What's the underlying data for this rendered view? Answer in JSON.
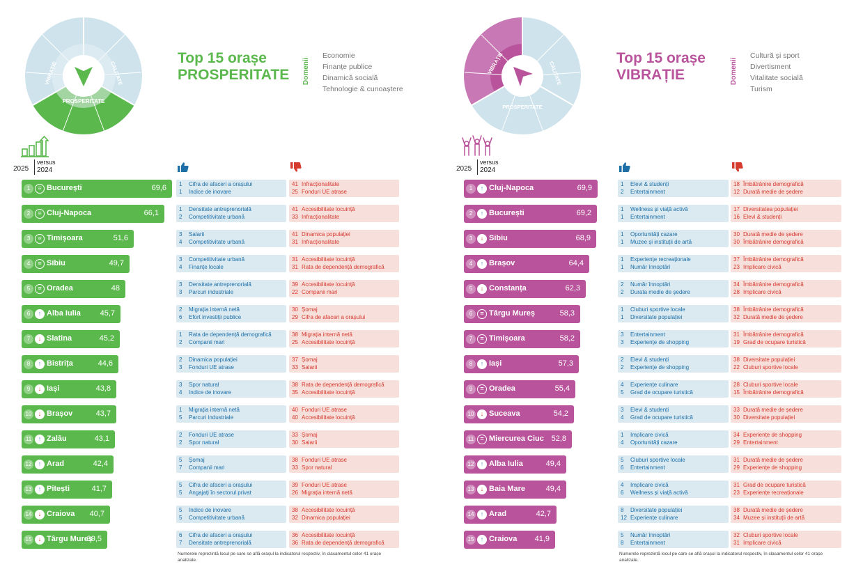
{
  "left": {
    "title_line1": "Top 15 orașe",
    "title_line2": "PROSPERITATE",
    "domenii_label": "Domenii",
    "domains": [
      "Economie",
      "Finanțe publice",
      "Dinamică socială",
      "Tehnologie & cunoaștere"
    ],
    "year_current": "2025",
    "versus": "versus",
    "year_prev": "2024",
    "wheel_labels": {
      "main_active": "PROSPERITATE",
      "other1": "VIBRAȚIE",
      "other2": "CALITATE"
    },
    "footnote": "Numerele reprezintă locul pe care se află orașul la indicatorul respectiv, în clasamentul celor 41 orașe analizate.",
    "rows": [
      {
        "rank": "1",
        "trend": "eq",
        "city": "București",
        "score": "69,6",
        "score_value": 69.6,
        "pos": [
          {
            "n": "1",
            "t": "Cifra de afaceri a orașului"
          },
          {
            "n": "1",
            "t": "Indice de inovare"
          }
        ],
        "neg": [
          {
            "n": "41",
            "t": "Infracționalitate"
          },
          {
            "n": "25",
            "t": "Fonduri UE atrase"
          }
        ]
      },
      {
        "rank": "2",
        "trend": "eq",
        "city": "Cluj-Napoca",
        "score": "66,1",
        "score_value": 66.1,
        "pos": [
          {
            "n": "1",
            "t": "Densitate antreprenorială"
          },
          {
            "n": "2",
            "t": "Competitivitate urbană"
          }
        ],
        "neg": [
          {
            "n": "41",
            "t": "Accesibilitate locuință"
          },
          {
            "n": "33",
            "t": "Infracționalitate"
          }
        ]
      },
      {
        "rank": "3",
        "trend": "eq",
        "city": "Timișoara",
        "score": "51,6",
        "score_value": 51.6,
        "pos": [
          {
            "n": "3",
            "t": "Salarii"
          },
          {
            "n": "4",
            "t": "Competitivitate urbană"
          }
        ],
        "neg": [
          {
            "n": "41",
            "t": "Dinamica populației"
          },
          {
            "n": "31",
            "t": "Infracționalitate"
          }
        ]
      },
      {
        "rank": "4",
        "trend": "eq",
        "city": "Sibiu",
        "score": "49,7",
        "score_value": 49.7,
        "pos": [
          {
            "n": "3",
            "t": "Competitivitate urbană"
          },
          {
            "n": "4",
            "t": "Finanțe locale"
          }
        ],
        "neg": [
          {
            "n": "31",
            "t": "Accesibilitate locuință"
          },
          {
            "n": "31",
            "t": "Rata de dependență demografică"
          }
        ]
      },
      {
        "rank": "5",
        "trend": "eq",
        "city": "Oradea",
        "score": "48",
        "score_value": 48,
        "pos": [
          {
            "n": "3",
            "t": "Densitate antreprenorială"
          },
          {
            "n": "3",
            "t": "Parcuri industriale"
          }
        ],
        "neg": [
          {
            "n": "39",
            "t": "Accesibilitate locuință"
          },
          {
            "n": "22",
            "t": "Companii mari"
          }
        ]
      },
      {
        "rank": "6",
        "trend": "up",
        "city": "Alba Iulia",
        "score": "45,7",
        "score_value": 45.7,
        "pos": [
          {
            "n": "2",
            "t": "Migrația internă netă"
          },
          {
            "n": "6",
            "t": "Efort investiții publice"
          }
        ],
        "neg": [
          {
            "n": "30",
            "t": "Șomaj"
          },
          {
            "n": "29",
            "t": "Cifra de afaceri a orașului"
          }
        ]
      },
      {
        "rank": "7",
        "trend": "down",
        "city": "Slatina",
        "score": "45,2",
        "score_value": 45.2,
        "pos": [
          {
            "n": "1",
            "t": "Rata de dependență demografică"
          },
          {
            "n": "2",
            "t": "Companii mari"
          }
        ],
        "neg": [
          {
            "n": "38",
            "t": "Migrația internă netă"
          },
          {
            "n": "25",
            "t": "Accesibilitate locuință"
          }
        ]
      },
      {
        "rank": "8",
        "trend": "up",
        "city": "Bistrița",
        "score": "44,6",
        "score_value": 44.6,
        "pos": [
          {
            "n": "2",
            "t": "Dinamica populației"
          },
          {
            "n": "3",
            "t": "Fonduri UE atrase"
          }
        ],
        "neg": [
          {
            "n": "37",
            "t": "Șomaj"
          },
          {
            "n": "33",
            "t": "Salarii"
          }
        ]
      },
      {
        "rank": "9",
        "trend": "down",
        "city": "Iași",
        "score": "43,8",
        "score_value": 43.8,
        "pos": [
          {
            "n": "3",
            "t": "Spor natural"
          },
          {
            "n": "4",
            "t": "Indice de inovare"
          }
        ],
        "neg": [
          {
            "n": "38",
            "t": "Rata de dependență demografică"
          },
          {
            "n": "35",
            "t": "Accesibilitate locuință"
          }
        ]
      },
      {
        "rank": "10",
        "trend": "down",
        "city": "Brașov",
        "score": "43,7",
        "score_value": 43.7,
        "pos": [
          {
            "n": "1",
            "t": "Migrația internă netă"
          },
          {
            "n": "5",
            "t": "Parcuri industriale"
          }
        ],
        "neg": [
          {
            "n": "40",
            "t": "Fonduri UE atrase"
          },
          {
            "n": "40",
            "t": "Accesibilitate locuință"
          }
        ]
      },
      {
        "rank": "11",
        "trend": "up",
        "city": "Zalău",
        "score": "43,1",
        "score_value": 43.1,
        "pos": [
          {
            "n": "2",
            "t": "Fonduri UE atrase"
          },
          {
            "n": "2",
            "t": "Spor natural"
          }
        ],
        "neg": [
          {
            "n": "33",
            "t": "Șomaj"
          },
          {
            "n": "30",
            "t": "Salarii"
          }
        ]
      },
      {
        "rank": "12",
        "trend": "up",
        "city": "Arad",
        "score": "42,4",
        "score_value": 42.4,
        "pos": [
          {
            "n": "5",
            "t": "Șomaj"
          },
          {
            "n": "7",
            "t": "Companii mari"
          }
        ],
        "neg": [
          {
            "n": "38",
            "t": "Fonduri UE atrase"
          },
          {
            "n": "33",
            "t": "Spor natural"
          }
        ]
      },
      {
        "rank": "13",
        "trend": "up",
        "city": "Pitești",
        "score": "41,7",
        "score_value": 41.7,
        "pos": [
          {
            "n": "5",
            "t": "Cifra de afaceri a orașului"
          },
          {
            "n": "5",
            "t": "Angajați în sectorul privat"
          }
        ],
        "neg": [
          {
            "n": "39",
            "t": "Fonduri UE atrase"
          },
          {
            "n": "26",
            "t": "Migrația internă netă"
          }
        ]
      },
      {
        "rank": "14",
        "trend": "down",
        "city": "Craiova",
        "score": "40,7",
        "score_value": 40.7,
        "pos": [
          {
            "n": "5",
            "t": "Indice de inovare"
          },
          {
            "n": "5",
            "t": "Competitivitate urbană"
          }
        ],
        "neg": [
          {
            "n": "38",
            "t": "Accesibilitate locuință"
          },
          {
            "n": "32",
            "t": "Dinamica populației"
          }
        ]
      },
      {
        "rank": "15",
        "trend": "down",
        "city": "Târgu Mureș",
        "score": "39,5",
        "score_value": 39.5,
        "pos": [
          {
            "n": "6",
            "t": "Cifra de afaceri a orașului"
          },
          {
            "n": "7",
            "t": "Densitate antreprenorială"
          }
        ],
        "neg": [
          {
            "n": "36",
            "t": "Accesibilitate locuință"
          },
          {
            "n": "36",
            "t": "Rata de dependență demografică"
          }
        ]
      }
    ]
  },
  "right": {
    "title_line1": "Top 15 orașe",
    "title_line2": "VIBRAȚIE",
    "domenii_label": "Domenii",
    "domains": [
      "Cultură și sport",
      "Divertisment",
      "Vitalitate socială",
      "Turism"
    ],
    "year_current": "2025",
    "versus": "versus",
    "year_prev": "2024",
    "wheel_labels": {
      "main_active": "VIBRAȚIE",
      "other1": "PROSPERITATE",
      "other2": "CALITATE"
    },
    "footnote": "Numerele reprezintă locul pe care se află orașul la indicatorul respectiv, în clasamentul celor 41 orașe analizate.",
    "rows": [
      {
        "rank": "1",
        "trend": "up",
        "city": "Cluj-Napoca",
        "score": "69,9",
        "score_value": 69.9,
        "pos": [
          {
            "n": "1",
            "t": "Elevi & studenți"
          },
          {
            "n": "2",
            "t": "Entertainment"
          }
        ],
        "neg": [
          {
            "n": "18",
            "t": "Îmbătrânire demografică"
          },
          {
            "n": "12",
            "t": "Durată medie de ședere"
          }
        ]
      },
      {
        "rank": "2",
        "trend": "up",
        "city": "București",
        "score": "69,2",
        "score_value": 69.2,
        "pos": [
          {
            "n": "1",
            "t": "Wellness și viață activă"
          },
          {
            "n": "1",
            "t": "Entertainment"
          }
        ],
        "neg": [
          {
            "n": "17",
            "t": "Diversitatea populației"
          },
          {
            "n": "16",
            "t": "Elevi & studenți"
          }
        ]
      },
      {
        "rank": "3",
        "trend": "down",
        "city": "Sibiu",
        "score": "68,9",
        "score_value": 68.9,
        "pos": [
          {
            "n": "1",
            "t": "Oportunități cazare"
          },
          {
            "n": "1",
            "t": "Muzee și instituții de artă"
          }
        ],
        "neg": [
          {
            "n": "30",
            "t": "Durată medie de ședere"
          },
          {
            "n": "30",
            "t": "Îmbătrânire demografică"
          }
        ]
      },
      {
        "rank": "4",
        "trend": "up",
        "city": "Brașov",
        "score": "64,4",
        "score_value": 64.4,
        "pos": [
          {
            "n": "1",
            "t": "Experiențe recreaționale"
          },
          {
            "n": "1",
            "t": "Număr înnoptări"
          }
        ],
        "neg": [
          {
            "n": "37",
            "t": "Îmbătrânire demografică"
          },
          {
            "n": "23",
            "t": "Implicare civică"
          }
        ]
      },
      {
        "rank": "5",
        "trend": "down",
        "city": "Constanța",
        "score": "62,3",
        "score_value": 62.3,
        "pos": [
          {
            "n": "2",
            "t": "Număr înnoptări"
          },
          {
            "n": "2",
            "t": "Durata medie de ședere"
          }
        ],
        "neg": [
          {
            "n": "34",
            "t": "Îmbătrânire demografică"
          },
          {
            "n": "28",
            "t": "Implicare civică"
          }
        ]
      },
      {
        "rank": "6",
        "trend": "eq",
        "city": "Târgu Mureș",
        "score": "58,3",
        "score_value": 58.3,
        "pos": [
          {
            "n": "1",
            "t": "Cluburi sportive locale"
          },
          {
            "n": "1",
            "t": "Diversitate populației"
          }
        ],
        "neg": [
          {
            "n": "38",
            "t": "Îmbătrânire demografică"
          },
          {
            "n": "32",
            "t": "Durată medie de ședere"
          }
        ]
      },
      {
        "rank": "7",
        "trend": "eq",
        "city": "Timișoara",
        "score": "58,2",
        "score_value": 58.2,
        "pos": [
          {
            "n": "3",
            "t": "Entertainment"
          },
          {
            "n": "3",
            "t": "Experiențe de shopping"
          }
        ],
        "neg": [
          {
            "n": "31",
            "t": "Îmbătrânire demografică"
          },
          {
            "n": "19",
            "t": "Grad de ocupare turistică"
          }
        ]
      },
      {
        "rank": "8",
        "trend": "up",
        "city": "Iași",
        "score": "57,3",
        "score_value": 57.3,
        "pos": [
          {
            "n": "2",
            "t": "Elevi & studenți"
          },
          {
            "n": "2",
            "t": "Experiențe de shopping"
          }
        ],
        "neg": [
          {
            "n": "38",
            "t": "Diversitate populației"
          },
          {
            "n": "22",
            "t": "Cluburi sportive locale"
          }
        ]
      },
      {
        "rank": "9",
        "trend": "eq",
        "city": "Oradea",
        "score": "55,4",
        "score_value": 55.4,
        "pos": [
          {
            "n": "4",
            "t": "Experiențe culinare"
          },
          {
            "n": "5",
            "t": "Grad de ocupare turistică"
          }
        ],
        "neg": [
          {
            "n": "28",
            "t": "Cluburi sportive locale"
          },
          {
            "n": "15",
            "t": "Îmbătrânire demografică"
          }
        ]
      },
      {
        "rank": "10",
        "trend": "down",
        "city": "Suceava",
        "score": "54,2",
        "score_value": 54.2,
        "pos": [
          {
            "n": "3",
            "t": "Elevi & studenți"
          },
          {
            "n": "4",
            "t": "Grad de ocupare turistică"
          }
        ],
        "neg": [
          {
            "n": "33",
            "t": "Durată medie de ședere"
          },
          {
            "n": "30",
            "t": "Diversitate populației"
          }
        ]
      },
      {
        "rank": "11",
        "trend": "eq",
        "city": "Miercurea Ciuc",
        "score": "52,8",
        "score_value": 52.8,
        "pos": [
          {
            "n": "1",
            "t": "Implicare civică"
          },
          {
            "n": "4",
            "t": "Oportunități cazare"
          }
        ],
        "neg": [
          {
            "n": "34",
            "t": "Experiențe de shopping"
          },
          {
            "n": "29",
            "t": "Entertainment"
          }
        ]
      },
      {
        "rank": "12",
        "trend": "up",
        "city": "Alba Iulia",
        "score": "49,4",
        "score_value": 49.4,
        "pos": [
          {
            "n": "5",
            "t": "Cluburi sportive locale"
          },
          {
            "n": "6",
            "t": "Entertainment"
          }
        ],
        "neg": [
          {
            "n": "31",
            "t": "Durată medie de ședere"
          },
          {
            "n": "29",
            "t": "Experiențe de shopping"
          }
        ]
      },
      {
        "rank": "13",
        "trend": "down",
        "city": "Baia Mare",
        "score": "49,4",
        "score_value": 49.4,
        "pos": [
          {
            "n": "4",
            "t": "Implicare civică"
          },
          {
            "n": "6",
            "t": "Wellness și viață activă"
          }
        ],
        "neg": [
          {
            "n": "31",
            "t": "Grad de ocupare turistică"
          },
          {
            "n": "23",
            "t": "Experiențe recreaționale"
          }
        ]
      },
      {
        "rank": "14",
        "trend": "up",
        "city": "Arad",
        "score": "42,7",
        "score_value": 42.7,
        "pos": [
          {
            "n": "8",
            "t": "Diversitate populației"
          },
          {
            "n": "12",
            "t": "Experiențe culinare"
          }
        ],
        "neg": [
          {
            "n": "38",
            "t": "Durată medie de ședere"
          },
          {
            "n": "34",
            "t": "Muzee și instituții de artă"
          }
        ]
      },
      {
        "rank": "15",
        "trend": "up",
        "city": "Craiova",
        "score": "41,9",
        "score_value": 41.9,
        "pos": [
          {
            "n": "5",
            "t": "Număr înnoptări"
          },
          {
            "n": "8",
            "t": "Entertainment"
          }
        ],
        "neg": [
          {
            "n": "32",
            "t": "Cluburi sportive locale"
          },
          {
            "n": "31",
            "t": "Implicare civică"
          }
        ]
      }
    ]
  },
  "colors": {
    "prosperitate": "#5ab84c",
    "vibratie": "#b9539b",
    "calitate": "#cfe3ec",
    "positive_bg": "#dbeaf1",
    "negative_bg": "#f7e0dc",
    "positive_text": "#1d6fa8",
    "negative_text": "#d63b2f",
    "up_arrow": "#5a8fc6",
    "down_arrow": "#e0493d"
  },
  "icons": {
    "trend_left": "bar-growth-icon",
    "trend_right": "people-celebrating-icon",
    "thumb_up": "thumbs-up-icon",
    "thumb_down": "thumbs-down-icon"
  }
}
